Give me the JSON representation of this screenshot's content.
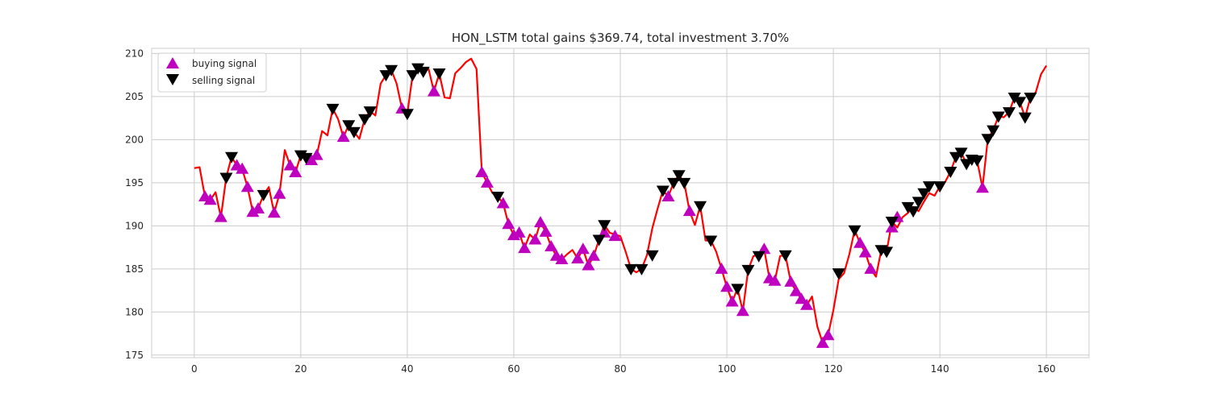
{
  "chart_data": {
    "type": "line",
    "title": "HON_LSTM total gains $369.74, total investment 3.70%",
    "xlabel": "",
    "ylabel": "",
    "xlim": [
      -8,
      168
    ],
    "ylim": [
      174.7,
      210.6
    ],
    "xticks": [
      0,
      20,
      40,
      60,
      80,
      100,
      120,
      140,
      160
    ],
    "yticks": [
      175,
      180,
      185,
      190,
      195,
      200,
      205,
      210
    ],
    "grid": true,
    "legend_position": "top-left",
    "colors": {
      "line": "#ff0000",
      "buy": "#bf00bf",
      "sell": "#000000",
      "grid": "#cccccc"
    },
    "series": [
      {
        "kind": "line",
        "x": [
          0,
          1,
          2,
          3,
          4,
          5,
          6,
          7,
          8,
          9,
          10,
          11,
          12,
          13,
          14,
          15,
          16,
          17,
          18,
          19,
          20,
          21,
          22,
          23,
          24,
          25,
          26,
          27,
          28,
          29,
          30,
          31,
          32,
          33,
          34,
          35,
          36,
          37,
          38,
          39,
          40,
          41,
          42,
          43,
          44,
          45,
          46,
          47,
          48,
          49,
          50,
          51,
          52,
          53,
          54,
          55,
          56,
          57,
          58,
          59,
          60,
          61,
          62,
          63,
          64,
          65,
          66,
          67,
          68,
          69,
          70,
          71,
          72,
          73,
          74,
          75,
          76,
          77,
          78,
          79,
          80,
          81,
          82,
          83,
          84,
          85,
          86,
          87,
          88,
          89,
          90,
          91,
          92,
          93,
          94,
          95,
          96,
          97,
          98,
          99,
          100,
          101,
          102,
          103,
          104,
          105,
          106,
          107,
          108,
          109,
          110,
          111,
          112,
          113,
          114,
          115,
          116,
          117,
          118,
          119,
          120,
          121,
          122,
          123,
          124,
          125,
          126,
          127,
          128,
          129,
          130,
          131,
          132,
          133,
          134,
          135,
          136,
          137,
          138,
          139,
          140,
          141,
          142,
          143,
          144,
          145,
          146,
          147,
          148,
          149,
          150,
          151,
          152,
          153,
          154,
          155,
          156,
          157,
          158,
          159,
          160
        ],
        "y": [
          196.7,
          196.8,
          193.4,
          193.0,
          193.9,
          191.0,
          195.6,
          198.0,
          197.0,
          196.6,
          194.5,
          191.6,
          192.0,
          193.6,
          194.5,
          191.5,
          193.7,
          198.8,
          197.0,
          196.2,
          198.2,
          197.9,
          197.6,
          198.2,
          201.0,
          200.5,
          203.6,
          202.4,
          200.3,
          201.7,
          200.9,
          200.1,
          202.4,
          203.3,
          202.8,
          206.5,
          207.5,
          208.1,
          206.5,
          203.6,
          203.0,
          207.5,
          208.3,
          207.9,
          208.2,
          205.6,
          207.7,
          204.9,
          204.8,
          207.7,
          208.3,
          209.0,
          209.4,
          208.2,
          196.2,
          195.0,
          193.8,
          193.4,
          192.6,
          190.2,
          188.9,
          189.2,
          187.4,
          189.0,
          188.4,
          190.4,
          189.3,
          187.6,
          186.5,
          186.1,
          186.7,
          187.2,
          186.2,
          187.3,
          185.4,
          186.5,
          188.4,
          190.1,
          189.2,
          189.0,
          188.8,
          187.0,
          185.0,
          184.6,
          185.0,
          186.6,
          189.7,
          192.0,
          194.1,
          193.4,
          195.0,
          195.9,
          195.0,
          191.7,
          190.1,
          192.3,
          188.3,
          188.3,
          187.0,
          185.0,
          182.9,
          181.2,
          182.7,
          180.1,
          184.9,
          186.5,
          186.6,
          187.3,
          183.9,
          183.6,
          186.5,
          186.6,
          183.5,
          182.4,
          181.5,
          180.8,
          181.8,
          178.3,
          176.4,
          177.3,
          180.2,
          183.8,
          184.5,
          186.7,
          189.5,
          188.0,
          186.9,
          185.0,
          184.1,
          187.2,
          187.0,
          190.5,
          189.8,
          191.0,
          191.5,
          192.2,
          191.7,
          192.8,
          193.8,
          193.5,
          194.6,
          195.1,
          196.3,
          198.0,
          198.5,
          197.2,
          197.7,
          197.6,
          194.4,
          200.1,
          201.1,
          202.7,
          202.6,
          203.2,
          204.9,
          204.4,
          202.6,
          204.9,
          205.5,
          207.6,
          208.6
        ]
      },
      {
        "name": "buying signal",
        "kind": "buy",
        "x": [
          2,
          3,
          5,
          8,
          9,
          10,
          11,
          12,
          15,
          16,
          18,
          19,
          22,
          23,
          28,
          39,
          45,
          54,
          55,
          58,
          59,
          60,
          61,
          62,
          64,
          65,
          66,
          67,
          68,
          69,
          72,
          73,
          74,
          75,
          77,
          79,
          89,
          93,
          99,
          100,
          101,
          103,
          107,
          108,
          109,
          112,
          113,
          114,
          115,
          118,
          119,
          125,
          126,
          127,
          131,
          132,
          148
        ],
        "y": [
          193.4,
          193.0,
          191.0,
          197.0,
          196.6,
          194.5,
          191.6,
          192.0,
          191.5,
          193.7,
          197.0,
          196.2,
          197.6,
          198.2,
          200.3,
          203.6,
          205.6,
          196.2,
          195.0,
          192.6,
          190.2,
          188.9,
          189.2,
          187.4,
          188.4,
          190.4,
          189.3,
          187.6,
          186.5,
          186.1,
          186.2,
          187.3,
          185.4,
          186.5,
          189.2,
          188.8,
          193.4,
          191.7,
          185.0,
          182.9,
          181.2,
          180.1,
          187.3,
          183.9,
          183.6,
          183.5,
          182.4,
          181.5,
          180.8,
          176.4,
          177.3,
          188.0,
          186.9,
          185.0,
          189.8,
          191.0,
          194.4
        ]
      },
      {
        "name": "selling signal",
        "kind": "sell",
        "x": [
          6,
          7,
          13,
          20,
          21,
          26,
          29,
          30,
          32,
          33,
          36,
          37,
          40,
          41,
          42,
          43,
          46,
          57,
          76,
          77,
          82,
          84,
          86,
          88,
          90,
          91,
          92,
          95,
          97,
          102,
          104,
          106,
          111,
          121,
          124,
          129,
          130,
          131,
          134,
          135,
          136,
          137,
          138,
          140,
          142,
          143,
          144,
          145,
          146,
          147,
          149,
          150,
          151,
          153,
          154,
          155,
          156,
          157
        ],
        "y": [
          195.6,
          198.0,
          193.6,
          198.2,
          197.9,
          203.6,
          201.7,
          200.9,
          202.4,
          203.3,
          207.5,
          208.1,
          203.0,
          207.5,
          208.3,
          207.9,
          207.7,
          193.4,
          188.4,
          190.1,
          185.0,
          185.0,
          186.6,
          194.1,
          195.0,
          195.9,
          195.0,
          192.3,
          188.3,
          182.7,
          184.9,
          186.5,
          186.6,
          184.5,
          189.5,
          187.2,
          187.0,
          190.5,
          192.2,
          191.7,
          192.8,
          193.8,
          194.6,
          194.6,
          196.3,
          198.0,
          198.5,
          197.2,
          197.7,
          197.6,
          200.1,
          201.1,
          202.7,
          203.2,
          204.9,
          204.4,
          202.6,
          204.9
        ]
      }
    ]
  }
}
